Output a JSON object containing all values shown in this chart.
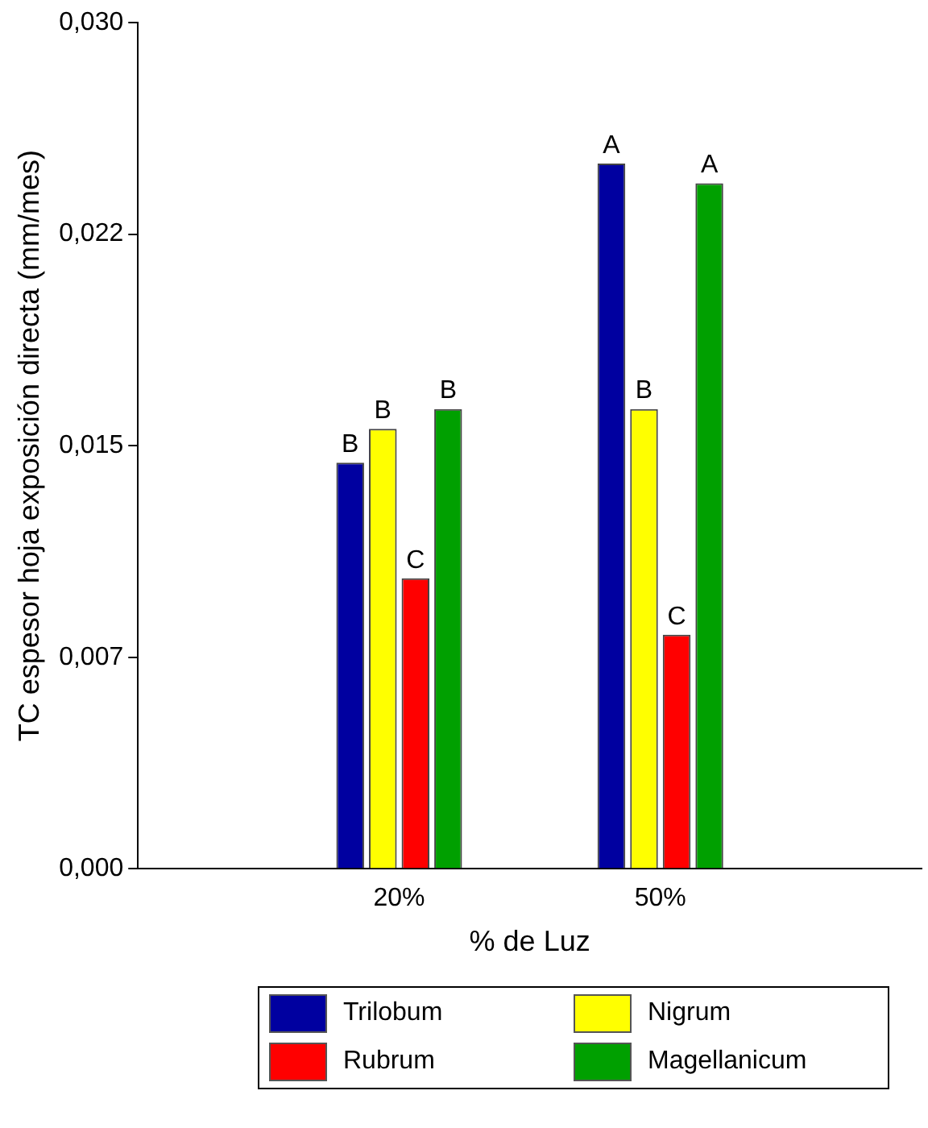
{
  "chart_data": {
    "type": "bar",
    "xlabel": "% de Luz",
    "ylabel": "TC espesor hoja exposición directa (mm/mes)",
    "categories": [
      "20%",
      "50%"
    ],
    "series": [
      {
        "name": "Trilobum",
        "color": "#0000a0",
        "values": [
          0.0144,
          0.025
        ]
      },
      {
        "name": "Nigrum",
        "color": "#ffff00",
        "values": [
          0.0156,
          0.0163
        ]
      },
      {
        "name": "Rubrum",
        "color": "#ff0000",
        "values": [
          0.0103,
          0.0083
        ]
      },
      {
        "name": "Magellanicum",
        "color": "#00a000",
        "values": [
          0.0163,
          0.0243
        ]
      }
    ],
    "ylim": [
      0,
      0.03
    ],
    "yticks": [
      {
        "value": 0,
        "label": "0,000"
      },
      {
        "value": 0.0075,
        "label": "0,007"
      },
      {
        "value": 0.015,
        "label": "0,015"
      },
      {
        "value": 0.0225,
        "label": "0,022"
      },
      {
        "value": 0.03,
        "label": "0,030"
      }
    ],
    "annotations": [
      "B",
      "B",
      "C",
      "B",
      "A",
      "B",
      "C",
      "A"
    ],
    "grid": false,
    "legend": "bottom"
  }
}
